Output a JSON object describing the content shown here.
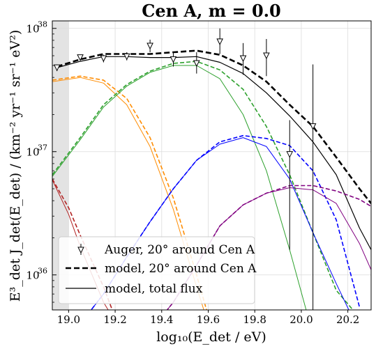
{
  "chart_data": {
    "type": "line",
    "title": "Cen A, m = 0.0",
    "xlabel": "log₁₀(E_det / eV)",
    "ylabel": "E³_det J_det(E_det) / (km⁻² yr⁻¹ sr⁻¹ eV²)",
    "xlim": [
      18.93,
      20.3
    ],
    "ylim": [
      5.2e+35,
      1.15e+38
    ],
    "yscale": "log",
    "grid": true,
    "shaded_region": [
      18.93,
      19.0
    ],
    "x_ticks": [
      {
        "value": 19.0,
        "label": "19.0"
      },
      {
        "value": 19.2,
        "label": "19.2"
      },
      {
        "value": 19.4,
        "label": "19.4"
      },
      {
        "value": 19.6,
        "label": "19.6"
      },
      {
        "value": 19.8,
        "label": "19.8"
      },
      {
        "value": 20.0,
        "label": "20.0"
      },
      {
        "value": 20.2,
        "label": "20.2"
      }
    ],
    "y_ticks": [
      {
        "value": 1e+36,
        "label": "10",
        "exp": "36"
      },
      {
        "value": 1e+37,
        "label": "10",
        "exp": "37"
      },
      {
        "value": 1e+38,
        "label": "10",
        "exp": "38"
      }
    ],
    "legend": {
      "placement": "lower-left",
      "entries": [
        {
          "label": "Auger, 20° around Cen A",
          "style": "marker"
        },
        {
          "label": "model, 20° around Cen A",
          "style": "dashed"
        },
        {
          "label": "model, total flux",
          "style": "solid"
        }
      ]
    },
    "series": [
      {
        "name": "model, total flux",
        "color": "#000000",
        "style": "solid",
        "width": 1.2,
        "x": [
          18.95,
          19.05,
          19.15,
          19.25,
          19.35,
          19.45,
          19.55,
          19.65,
          19.75,
          19.85,
          19.95,
          20.05,
          20.15,
          20.25,
          20.3
        ],
        "y": [
          4.8e+37,
          5.4e+37,
          5.9e+37,
          5.9e+37,
          5.8e+37,
          5.8e+37,
          5.9e+37,
          5.3e+37,
          4.3e+37,
          3e+37,
          1.95e+37,
          1.2e+37,
          6.5e+36,
          2.4e+36,
          1.6e+36
        ]
      },
      {
        "name": "model, 20° around Cen A",
        "color": "#000000",
        "style": "dashed",
        "width": 2.6,
        "x": [
          18.95,
          19.05,
          19.15,
          19.25,
          19.35,
          19.45,
          19.55,
          19.65,
          19.75,
          19.85,
          19.95,
          20.05,
          20.15,
          20.25,
          20.3
        ],
        "y": [
          4.9e+37,
          5.6e+37,
          6.2e+37,
          6.2e+37,
          6.2e+37,
          6.4e+37,
          6.6e+37,
          6.1e+37,
          5e+37,
          3.7e+37,
          2.4e+37,
          1.6e+37,
          9e+36,
          5e+36,
          3.8e+36
        ]
      },
      {
        "name": "orange, 20°",
        "color": "#ff8c00",
        "style": "dashed",
        "width": 1.6,
        "x": [
          18.93,
          19.05,
          19.15,
          19.25,
          19.35,
          19.45,
          19.55,
          19.61
        ],
        "y": [
          3.8e+37,
          4.1e+37,
          3.8e+37,
          2.7e+37,
          1.3e+37,
          4.2e+36,
          1e+36,
          4e+35
        ]
      },
      {
        "name": "orange, total",
        "color": "#ff8c00",
        "style": "solid",
        "width": 1.0,
        "x": [
          18.93,
          19.05,
          19.15,
          19.25,
          19.35,
          19.45,
          19.55,
          19.6
        ],
        "y": [
          3.7e+37,
          4e+37,
          3.6e+37,
          2.4e+37,
          1.1e+37,
          3.4e+36,
          8e+35,
          4e+35
        ]
      },
      {
        "name": "green, 20°",
        "color": "#2ca02c",
        "style": "dashed",
        "width": 1.6,
        "x": [
          18.93,
          19.05,
          19.15,
          19.25,
          19.35,
          19.45,
          19.55,
          19.65,
          19.75,
          19.85,
          19.95,
          20.05,
          20.15,
          20.25,
          20.3
        ],
        "y": [
          6.5e+36,
          1.3e+37,
          2.4e+37,
          3.5e+37,
          4.5e+37,
          5.2e+37,
          5.4e+37,
          4.6e+37,
          3.2e+37,
          1.6e+37,
          6.5e+36,
          2.2e+36,
          7.5e+35,
          4.5e+35,
          4.2e+35
        ]
      },
      {
        "name": "green, total",
        "color": "#2ca02c",
        "style": "solid",
        "width": 1.0,
        "x": [
          18.93,
          19.05,
          19.15,
          19.25,
          19.35,
          19.45,
          19.55,
          19.65,
          19.75,
          19.85,
          19.95,
          20.03
        ],
        "y": [
          6.3e+36,
          1.25e+37,
          2.3e+37,
          3.4e+37,
          4.4e+37,
          5e+37,
          5e+37,
          3.9e+37,
          2e+37,
          7e+36,
          1.6e+36,
          4.5e+35
        ]
      },
      {
        "name": "blue, 20°",
        "color": "#0000ff",
        "style": "dashed",
        "width": 1.6,
        "x": [
          19.05,
          19.15,
          19.25,
          19.35,
          19.45,
          19.55,
          19.65,
          19.75,
          19.85,
          19.95,
          20.05,
          20.15,
          20.25
        ],
        "y": [
          4e+35,
          7e+35,
          1.4e+36,
          2.7e+36,
          5e+36,
          8.5e+36,
          1.2e+37,
          1.35e+37,
          1.28e+37,
          1.12e+37,
          7e+36,
          2.8e+36,
          5.5e+35
        ]
      },
      {
        "name": "blue, total",
        "color": "#0000ff",
        "style": "solid",
        "width": 1.0,
        "x": [
          19.05,
          19.15,
          19.25,
          19.35,
          19.45,
          19.55,
          19.65,
          19.75,
          19.85,
          19.95,
          20.05,
          20.15,
          20.22
        ],
        "y": [
          4e+35,
          7e+35,
          1.4e+36,
          2.7e+36,
          5e+36,
          8.5e+36,
          1.15e+37,
          1.3e+37,
          1.1e+37,
          6e+36,
          2.2e+36,
          8.5e+35,
          4.5e+35
        ]
      },
      {
        "name": "purple, 20°",
        "color": "#800080",
        "style": "dashed",
        "width": 1.6,
        "x": [
          19.35,
          19.45,
          19.55,
          19.65,
          19.75,
          19.85,
          19.95,
          20.05,
          20.15,
          20.25,
          20.3
        ],
        "y": [
          3.5e+35,
          6e+35,
          1.2e+36,
          2.5e+36,
          3.7e+36,
          4.6e+36,
          5.3e+36,
          5.3e+36,
          4.8e+36,
          4.1e+36,
          3.6e+36
        ]
      },
      {
        "name": "purple, total",
        "color": "#800080",
        "style": "solid",
        "width": 1.0,
        "x": [
          19.35,
          19.45,
          19.55,
          19.65,
          19.75,
          19.85,
          19.95,
          20.05,
          20.15,
          20.25,
          20.3
        ],
        "y": [
          3.5e+35,
          6e+35,
          1.2e+36,
          2.5e+36,
          3.7e+36,
          4.6e+36,
          5.1e+36,
          4.9e+36,
          3.8e+36,
          1.8e+36,
          1.1e+36
        ]
      },
      {
        "name": "red, 20°",
        "color": "#b22222",
        "style": "dashed",
        "width": 1.6,
        "x": [
          18.93,
          19.0,
          19.05,
          19.15,
          19.2
        ],
        "y": [
          6e+36,
          3.5e+36,
          2.1e+36,
          8e+35,
          4.5e+35
        ]
      },
      {
        "name": "red, total",
        "color": "#b22222",
        "style": "solid",
        "width": 1.0,
        "x": [
          18.93,
          19.0,
          19.05,
          19.15,
          19.19
        ],
        "y": [
          5.9e+36,
          3.1e+36,
          1.7e+36,
          6e+35,
          4.5e+35
        ]
      }
    ],
    "auger_points": [
      {
        "x": 18.95,
        "y": 4.8e+37,
        "yerr_lo": 4.5e+37,
        "yerr_hi": 5.1e+37
      },
      {
        "x": 19.05,
        "y": 5.8e+37,
        "yerr_lo": 5.6e+37,
        "yerr_hi": 6.1e+37
      },
      {
        "x": 19.15,
        "y": 5.7e+37,
        "yerr_lo": 5.3e+37,
        "yerr_hi": 6.1e+37
      },
      {
        "x": 19.25,
        "y": 5.9e+37,
        "yerr_lo": 5.5e+37,
        "yerr_hi": 6.4e+37
      },
      {
        "x": 19.35,
        "y": 7.2e+37,
        "yerr_lo": 6.4e+37,
        "yerr_hi": 8.1e+37
      },
      {
        "x": 19.45,
        "y": 5.6e+37,
        "yerr_lo": 4.9e+37,
        "yerr_hi": 6.4e+37
      },
      {
        "x": 19.55,
        "y": 5.2e+37,
        "yerr_lo": 4.3e+37,
        "yerr_hi": 6.4e+37
      },
      {
        "x": 19.65,
        "y": 7.8e+37,
        "yerr_lo": 6.2e+37,
        "yerr_hi": 1e+38
      },
      {
        "x": 19.75,
        "y": 5.7e+37,
        "yerr_lo": 4.2e+37,
        "yerr_hi": 7.6e+37
      },
      {
        "x": 19.85,
        "y": 6e+37,
        "yerr_lo": 4.1e+37,
        "yerr_hi": 8.2e+37
      },
      {
        "x": 19.95,
        "y": 9.5e+36,
        "yerr_lo": 1.6e+36,
        "yerr_hi": 1.8e+37
      },
      {
        "x": 20.05,
        "y": 1.6e+37,
        "yerr_lo": 4e+35,
        "yerr_hi": 5.1e+37
      }
    ]
  }
}
